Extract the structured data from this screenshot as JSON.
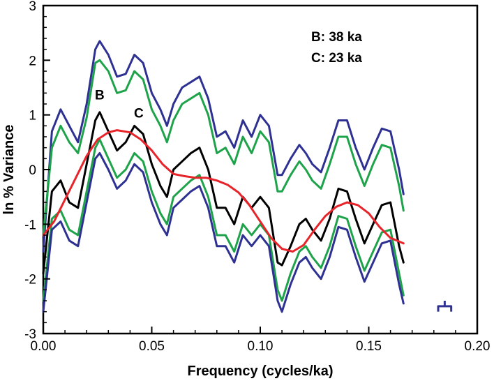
{
  "chart_data": {
    "type": "line",
    "title": "",
    "xlabel": "Frequency (cycles/ka)",
    "ylabel": "ln % Variance",
    "xlim": [
      0,
      0.2
    ],
    "ylim": [
      -3,
      3
    ],
    "x_ticks": [
      0.0,
      0.05,
      0.1,
      0.15,
      0.2
    ],
    "x_tick_labels": [
      "0.00",
      "0.05",
      "0.10",
      "0.15",
      "0.20"
    ],
    "y_ticks": [
      -3,
      -2,
      -1,
      0,
      1,
      2,
      3
    ],
    "y_tick_labels": [
      "-3",
      "-2",
      "-1",
      "0",
      "1",
      "2",
      "3"
    ],
    "grid": false,
    "legend_text": [
      "B: 38 ka",
      "C: 23 ka"
    ],
    "peak_labels": [
      {
        "text": "B",
        "x": 0.026,
        "y": 1.28
      },
      {
        "text": "C",
        "x": 0.044,
        "y": 0.95
      }
    ],
    "bandwidth_marker_x": [
      0.182,
      0.188
    ],
    "series": [
      {
        "color": "#2e3192",
        "x": [
          0.0,
          0.004,
          0.008,
          0.012,
          0.016,
          0.02,
          0.024,
          0.026,
          0.03,
          0.034,
          0.038,
          0.042,
          0.046,
          0.05,
          0.054,
          0.057,
          0.06,
          0.064,
          0.068,
          0.072,
          0.076,
          0.08,
          0.084,
          0.088,
          0.092,
          0.096,
          0.1,
          0.104,
          0.108,
          0.11,
          0.114,
          0.118,
          0.121,
          0.124,
          0.128,
          0.132,
          0.136,
          0.14,
          0.144,
          0.148,
          0.152,
          0.156,
          0.16,
          0.164,
          0.166
        ],
        "values": [
          -1.5,
          0.7,
          1.1,
          0.8,
          0.5,
          1.2,
          2.2,
          2.35,
          2.1,
          1.7,
          1.75,
          2.1,
          1.95,
          1.4,
          1.1,
          0.8,
          1.2,
          1.5,
          1.6,
          1.7,
          1.3,
          0.6,
          0.7,
          0.4,
          0.9,
          0.6,
          1.0,
          0.8,
          -0.1,
          -0.1,
          0.2,
          0.45,
          0.3,
          0.1,
          -0.05,
          0.4,
          0.9,
          0.9,
          0.4,
          0.0,
          0.4,
          0.75,
          0.7,
          0.0,
          -0.45
        ]
      },
      {
        "color": "#1ea34a",
        "x": [
          0.0,
          0.004,
          0.008,
          0.012,
          0.016,
          0.02,
          0.024,
          0.026,
          0.03,
          0.034,
          0.038,
          0.042,
          0.046,
          0.05,
          0.054,
          0.057,
          0.06,
          0.064,
          0.068,
          0.072,
          0.076,
          0.08,
          0.084,
          0.088,
          0.092,
          0.096,
          0.1,
          0.104,
          0.108,
          0.11,
          0.114,
          0.118,
          0.121,
          0.124,
          0.128,
          0.132,
          0.136,
          0.14,
          0.144,
          0.148,
          0.152,
          0.156,
          0.16,
          0.164,
          0.166
        ],
        "values": [
          -1.2,
          0.4,
          0.8,
          0.5,
          0.3,
          0.95,
          1.95,
          2.0,
          1.8,
          1.4,
          1.45,
          1.8,
          1.65,
          1.1,
          0.8,
          0.5,
          0.9,
          1.2,
          1.3,
          1.4,
          1.0,
          0.3,
          0.4,
          0.1,
          0.6,
          0.3,
          0.7,
          0.5,
          -0.4,
          -0.4,
          -0.1,
          0.15,
          0.0,
          -0.2,
          -0.35,
          0.1,
          0.6,
          0.6,
          0.1,
          -0.3,
          0.1,
          0.45,
          0.4,
          -0.3,
          -0.75
        ]
      },
      {
        "color": "#000000",
        "x": [
          0.0,
          0.004,
          0.008,
          0.012,
          0.016,
          0.02,
          0.024,
          0.026,
          0.03,
          0.034,
          0.038,
          0.042,
          0.046,
          0.05,
          0.054,
          0.057,
          0.06,
          0.064,
          0.068,
          0.072,
          0.076,
          0.08,
          0.084,
          0.088,
          0.092,
          0.096,
          0.1,
          0.104,
          0.108,
          0.11,
          0.114,
          0.118,
          0.121,
          0.124,
          0.128,
          0.132,
          0.136,
          0.14,
          0.144,
          0.148,
          0.152,
          0.156,
          0.16,
          0.164,
          0.166
        ],
        "values": [
          -1.9,
          -0.4,
          -0.2,
          -0.6,
          -0.7,
          0.1,
          0.9,
          1.05,
          0.7,
          0.35,
          0.5,
          0.8,
          0.65,
          0.1,
          -0.3,
          -0.5,
          0.0,
          0.15,
          0.3,
          0.4,
          0.0,
          -0.7,
          -0.7,
          -1.0,
          -0.5,
          -0.7,
          -0.5,
          -0.7,
          -1.7,
          -1.75,
          -1.4,
          -1.0,
          -0.9,
          -1.1,
          -1.3,
          -0.9,
          -0.35,
          -0.4,
          -0.9,
          -1.35,
          -1.0,
          -0.65,
          -0.6,
          -1.4,
          -1.7
        ]
      },
      {
        "color": "#1ea34a",
        "x": [
          0.0,
          0.004,
          0.008,
          0.012,
          0.016,
          0.02,
          0.024,
          0.026,
          0.03,
          0.034,
          0.038,
          0.042,
          0.046,
          0.05,
          0.054,
          0.057,
          0.06,
          0.064,
          0.068,
          0.072,
          0.076,
          0.08,
          0.084,
          0.088,
          0.092,
          0.096,
          0.1,
          0.104,
          0.108,
          0.11,
          0.114,
          0.118,
          0.121,
          0.124,
          0.128,
          0.132,
          0.136,
          0.14,
          0.144,
          0.148,
          0.152,
          0.156,
          0.16,
          0.164,
          0.166
        ],
        "values": [
          -2.4,
          -0.9,
          -0.75,
          -1.1,
          -1.2,
          -0.4,
          0.4,
          0.55,
          0.2,
          -0.15,
          0.0,
          0.3,
          0.15,
          -0.4,
          -0.8,
          -1.0,
          -0.5,
          -0.35,
          -0.2,
          -0.1,
          -0.5,
          -1.2,
          -1.2,
          -1.5,
          -1.0,
          -1.2,
          -1.0,
          -1.2,
          -2.2,
          -2.4,
          -1.9,
          -1.5,
          -1.4,
          -1.6,
          -1.8,
          -1.4,
          -0.85,
          -0.9,
          -1.4,
          -1.85,
          -1.5,
          -1.15,
          -1.1,
          -1.9,
          -2.3
        ]
      },
      {
        "color": "#2e3192",
        "x": [
          0.0,
          0.004,
          0.008,
          0.012,
          0.016,
          0.02,
          0.024,
          0.026,
          0.03,
          0.034,
          0.038,
          0.042,
          0.046,
          0.05,
          0.054,
          0.057,
          0.06,
          0.064,
          0.068,
          0.072,
          0.076,
          0.08,
          0.084,
          0.088,
          0.092,
          0.096,
          0.1,
          0.104,
          0.108,
          0.11,
          0.114,
          0.118,
          0.121,
          0.124,
          0.128,
          0.132,
          0.136,
          0.14,
          0.144,
          0.148,
          0.152,
          0.156,
          0.16,
          0.164,
          0.166
        ],
        "values": [
          -2.6,
          -1.1,
          -0.95,
          -1.3,
          -1.4,
          -0.6,
          0.2,
          0.3,
          0.0,
          -0.35,
          -0.2,
          0.1,
          -0.05,
          -0.6,
          -1.0,
          -1.2,
          -0.7,
          -0.55,
          -0.4,
          -0.3,
          -0.7,
          -1.4,
          -1.4,
          -1.7,
          -1.2,
          -1.4,
          -1.2,
          -1.4,
          -2.4,
          -2.6,
          -2.1,
          -1.7,
          -1.6,
          -1.8,
          -2.0,
          -1.6,
          -1.05,
          -1.1,
          -1.6,
          -2.05,
          -1.7,
          -1.35,
          -1.3,
          -2.1,
          -2.45
        ]
      },
      {
        "color": "#e8242b",
        "x": [
          0.0,
          0.005,
          0.01,
          0.015,
          0.02,
          0.025,
          0.03,
          0.034,
          0.04,
          0.045,
          0.05,
          0.055,
          0.06,
          0.065,
          0.07,
          0.075,
          0.08,
          0.085,
          0.09,
          0.095,
          0.1,
          0.105,
          0.11,
          0.115,
          0.12,
          0.125,
          0.13,
          0.135,
          0.14,
          0.145,
          0.15,
          0.155,
          0.16,
          0.166
        ],
        "values": [
          -1.2,
          -0.95,
          -0.55,
          -0.15,
          0.25,
          0.55,
          0.68,
          0.72,
          0.68,
          0.55,
          0.35,
          0.1,
          -0.08,
          -0.12,
          -0.15,
          -0.15,
          -0.2,
          -0.28,
          -0.42,
          -0.65,
          -0.95,
          -1.25,
          -1.45,
          -1.5,
          -1.38,
          -1.1,
          -0.85,
          -0.68,
          -0.6,
          -0.65,
          -0.8,
          -1.05,
          -1.25,
          -1.35
        ]
      }
    ]
  }
}
